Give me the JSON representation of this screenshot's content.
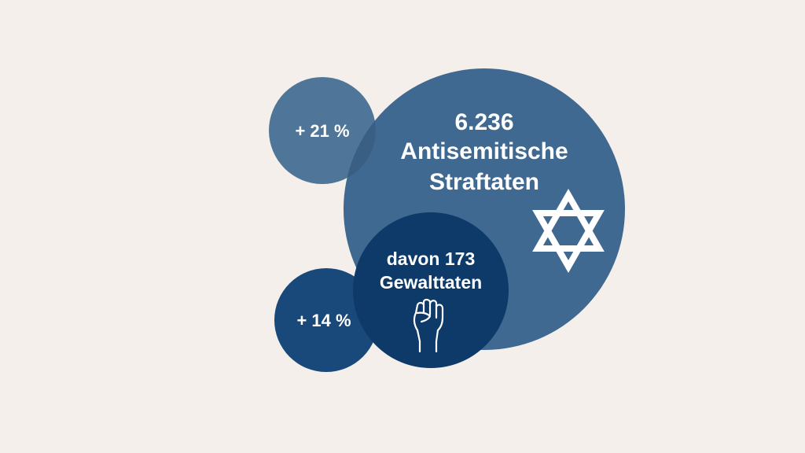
{
  "colors": {
    "background": "#f4efea",
    "main_circle": "#3f6990",
    "small_circle_top": "#4f7698",
    "overlap": "#395f85",
    "violence_circle": "#0e3a69",
    "small_circle_bottom": "#19487a",
    "icon_stroke": "#ffffff"
  },
  "main": {
    "count": "6.236",
    "line1": "Antisemitische",
    "line2": "Straftaten"
  },
  "increase_total": "+ 21 %",
  "violence": {
    "line1": "davon 173",
    "line2": "Gewalttaten"
  },
  "increase_violence": "+ 14 %",
  "icons": {
    "main": "star-of-david-icon",
    "violence": "raised-fist-icon"
  }
}
